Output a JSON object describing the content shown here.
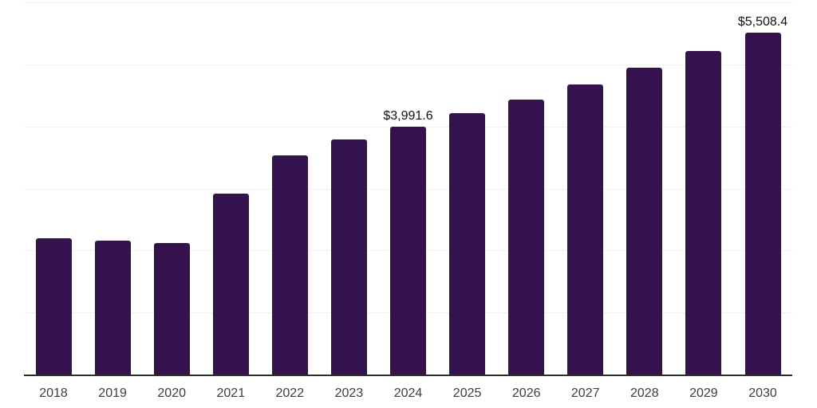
{
  "chart": {
    "background_color": "#ffffff",
    "bar_color": "#33124e",
    "grid_color": "#f0f0f0",
    "axis_color": "#2d2d2d",
    "tick_label_color": "#3d3d3d",
    "data_label_color": "#111111"
  },
  "chart_data": {
    "type": "bar",
    "title": "",
    "xlabel": "",
    "ylabel": "",
    "categories": [
      "2018",
      "2019",
      "2020",
      "2021",
      "2022",
      "2023",
      "2024",
      "2025",
      "2026",
      "2027",
      "2028",
      "2029",
      "2030"
    ],
    "values": [
      2195,
      2155,
      2125,
      2920,
      3530,
      3795,
      3991.6,
      4220,
      4435,
      4680,
      4945,
      5215,
      5508.4
    ],
    "data_labels": [
      "",
      "",
      "",
      "",
      "",
      "",
      "$3,991.6",
      "",
      "",
      "",
      "",
      "",
      "$5,508.4"
    ],
    "ylim": [
      0,
      6000
    ],
    "gridline_values": [
      1000,
      2000,
      3000,
      4000,
      5000,
      6000
    ],
    "grid": "horizontal",
    "legend": "none",
    "y_axis_labels_visible": false
  }
}
